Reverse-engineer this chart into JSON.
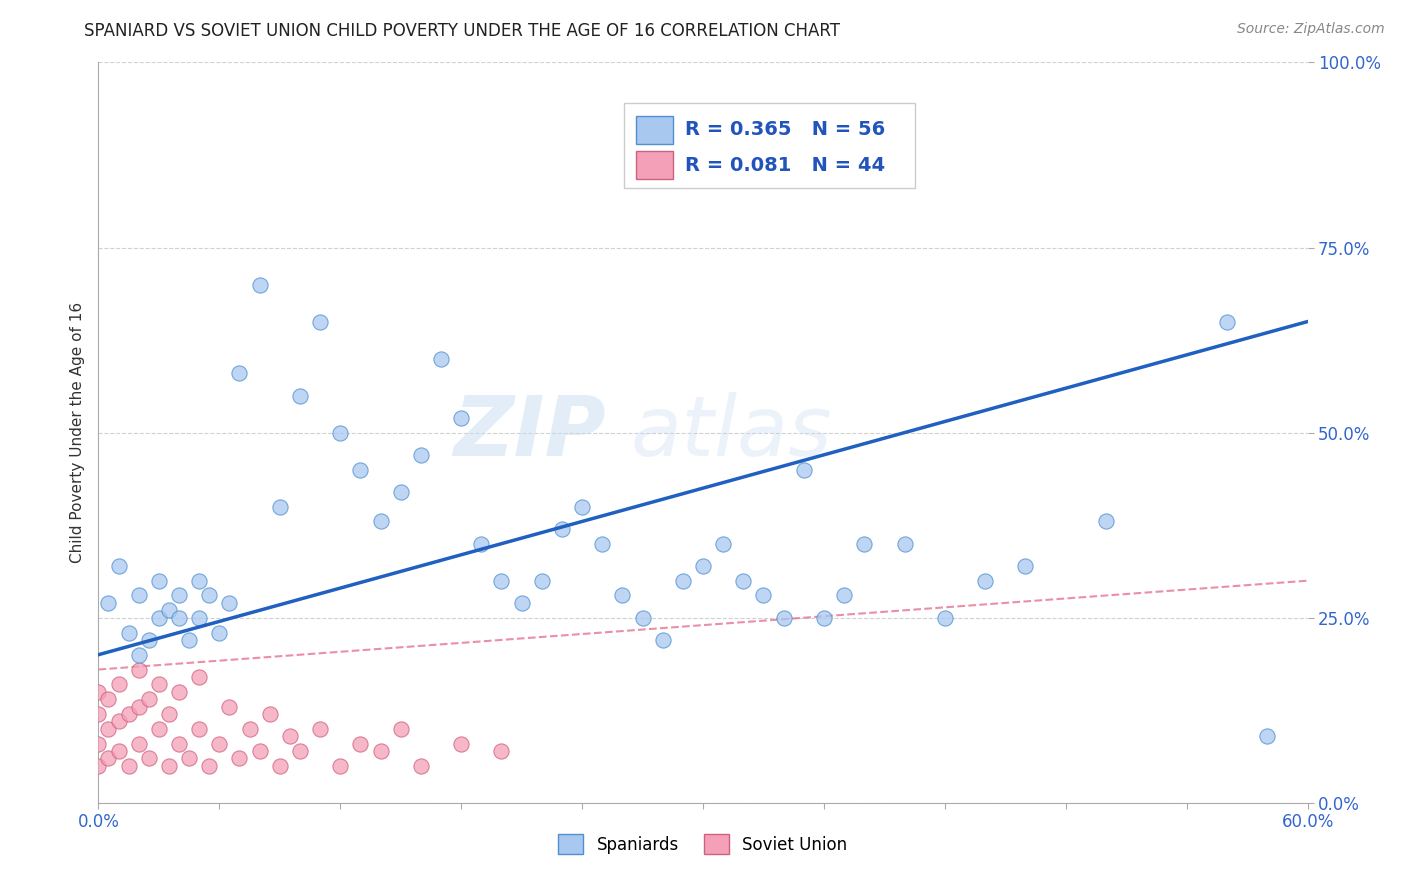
{
  "title": "SPANIARD VS SOVIET UNION CHILD POVERTY UNDER THE AGE OF 16 CORRELATION CHART",
  "source": "Source: ZipAtlas.com",
  "ylabel": "Child Poverty Under the Age of 16",
  "xlim": [
    0.0,
    0.6
  ],
  "ylim": [
    0.0,
    1.0
  ],
  "yticks": [
    0.0,
    0.25,
    0.5,
    0.75,
    1.0
  ],
  "yticklabels": [
    "0.0%",
    "25.0%",
    "50.0%",
    "75.0%",
    "100.0%"
  ],
  "r_spaniards": 0.365,
  "n_spaniards": 56,
  "r_soviet": 0.081,
  "n_soviet": 44,
  "color_spaniards": "#A8C8F0",
  "color_soviet": "#F4A0B8",
  "color_regression_blue": "#2060C0",
  "color_regression_pink": "#E06080",
  "watermark_zip": "ZIP",
  "watermark_atlas": "atlas",
  "legend_r1": "R = 0.365",
  "legend_n1": "N = 56",
  "legend_r2": "R = 0.081",
  "legend_n2": "N = 44",
  "blue_line_x0": 0.0,
  "blue_line_y0": 0.2,
  "blue_line_x1": 0.6,
  "blue_line_y1": 0.65,
  "pink_line_x0": 0.0,
  "pink_line_y0": 0.18,
  "pink_line_x1": 0.6,
  "pink_line_y1": 0.3,
  "spaniards_x": [
    0.005,
    0.01,
    0.015,
    0.02,
    0.02,
    0.025,
    0.03,
    0.03,
    0.035,
    0.04,
    0.04,
    0.045,
    0.05,
    0.05,
    0.055,
    0.06,
    0.065,
    0.07,
    0.08,
    0.09,
    0.1,
    0.11,
    0.12,
    0.13,
    0.14,
    0.15,
    0.16,
    0.17,
    0.18,
    0.19,
    0.2,
    0.21,
    0.22,
    0.23,
    0.24,
    0.25,
    0.26,
    0.27,
    0.28,
    0.29,
    0.3,
    0.31,
    0.32,
    0.33,
    0.34,
    0.35,
    0.36,
    0.37,
    0.38,
    0.4,
    0.42,
    0.44,
    0.46,
    0.5,
    0.56,
    0.58
  ],
  "spaniards_y": [
    0.27,
    0.32,
    0.23,
    0.2,
    0.28,
    0.22,
    0.25,
    0.3,
    0.26,
    0.25,
    0.28,
    0.22,
    0.3,
    0.25,
    0.28,
    0.23,
    0.27,
    0.58,
    0.7,
    0.4,
    0.55,
    0.65,
    0.5,
    0.45,
    0.38,
    0.42,
    0.47,
    0.6,
    0.52,
    0.35,
    0.3,
    0.27,
    0.3,
    0.37,
    0.4,
    0.35,
    0.28,
    0.25,
    0.22,
    0.3,
    0.32,
    0.35,
    0.3,
    0.28,
    0.25,
    0.45,
    0.25,
    0.28,
    0.35,
    0.35,
    0.25,
    0.3,
    0.32,
    0.38,
    0.65,
    0.09
  ],
  "soviet_x": [
    0.0,
    0.0,
    0.0,
    0.0,
    0.005,
    0.005,
    0.005,
    0.01,
    0.01,
    0.01,
    0.015,
    0.015,
    0.02,
    0.02,
    0.02,
    0.025,
    0.025,
    0.03,
    0.03,
    0.035,
    0.035,
    0.04,
    0.04,
    0.045,
    0.05,
    0.05,
    0.055,
    0.06,
    0.065,
    0.07,
    0.075,
    0.08,
    0.085,
    0.09,
    0.095,
    0.1,
    0.11,
    0.12,
    0.13,
    0.14,
    0.15,
    0.16,
    0.18,
    0.2
  ],
  "soviet_y": [
    0.05,
    0.08,
    0.12,
    0.15,
    0.06,
    0.1,
    0.14,
    0.07,
    0.11,
    0.16,
    0.05,
    0.12,
    0.08,
    0.13,
    0.18,
    0.06,
    0.14,
    0.1,
    0.16,
    0.05,
    0.12,
    0.08,
    0.15,
    0.06,
    0.1,
    0.17,
    0.05,
    0.08,
    0.13,
    0.06,
    0.1,
    0.07,
    0.12,
    0.05,
    0.09,
    0.07,
    0.1,
    0.05,
    0.08,
    0.07,
    0.1,
    0.05,
    0.08,
    0.07
  ]
}
